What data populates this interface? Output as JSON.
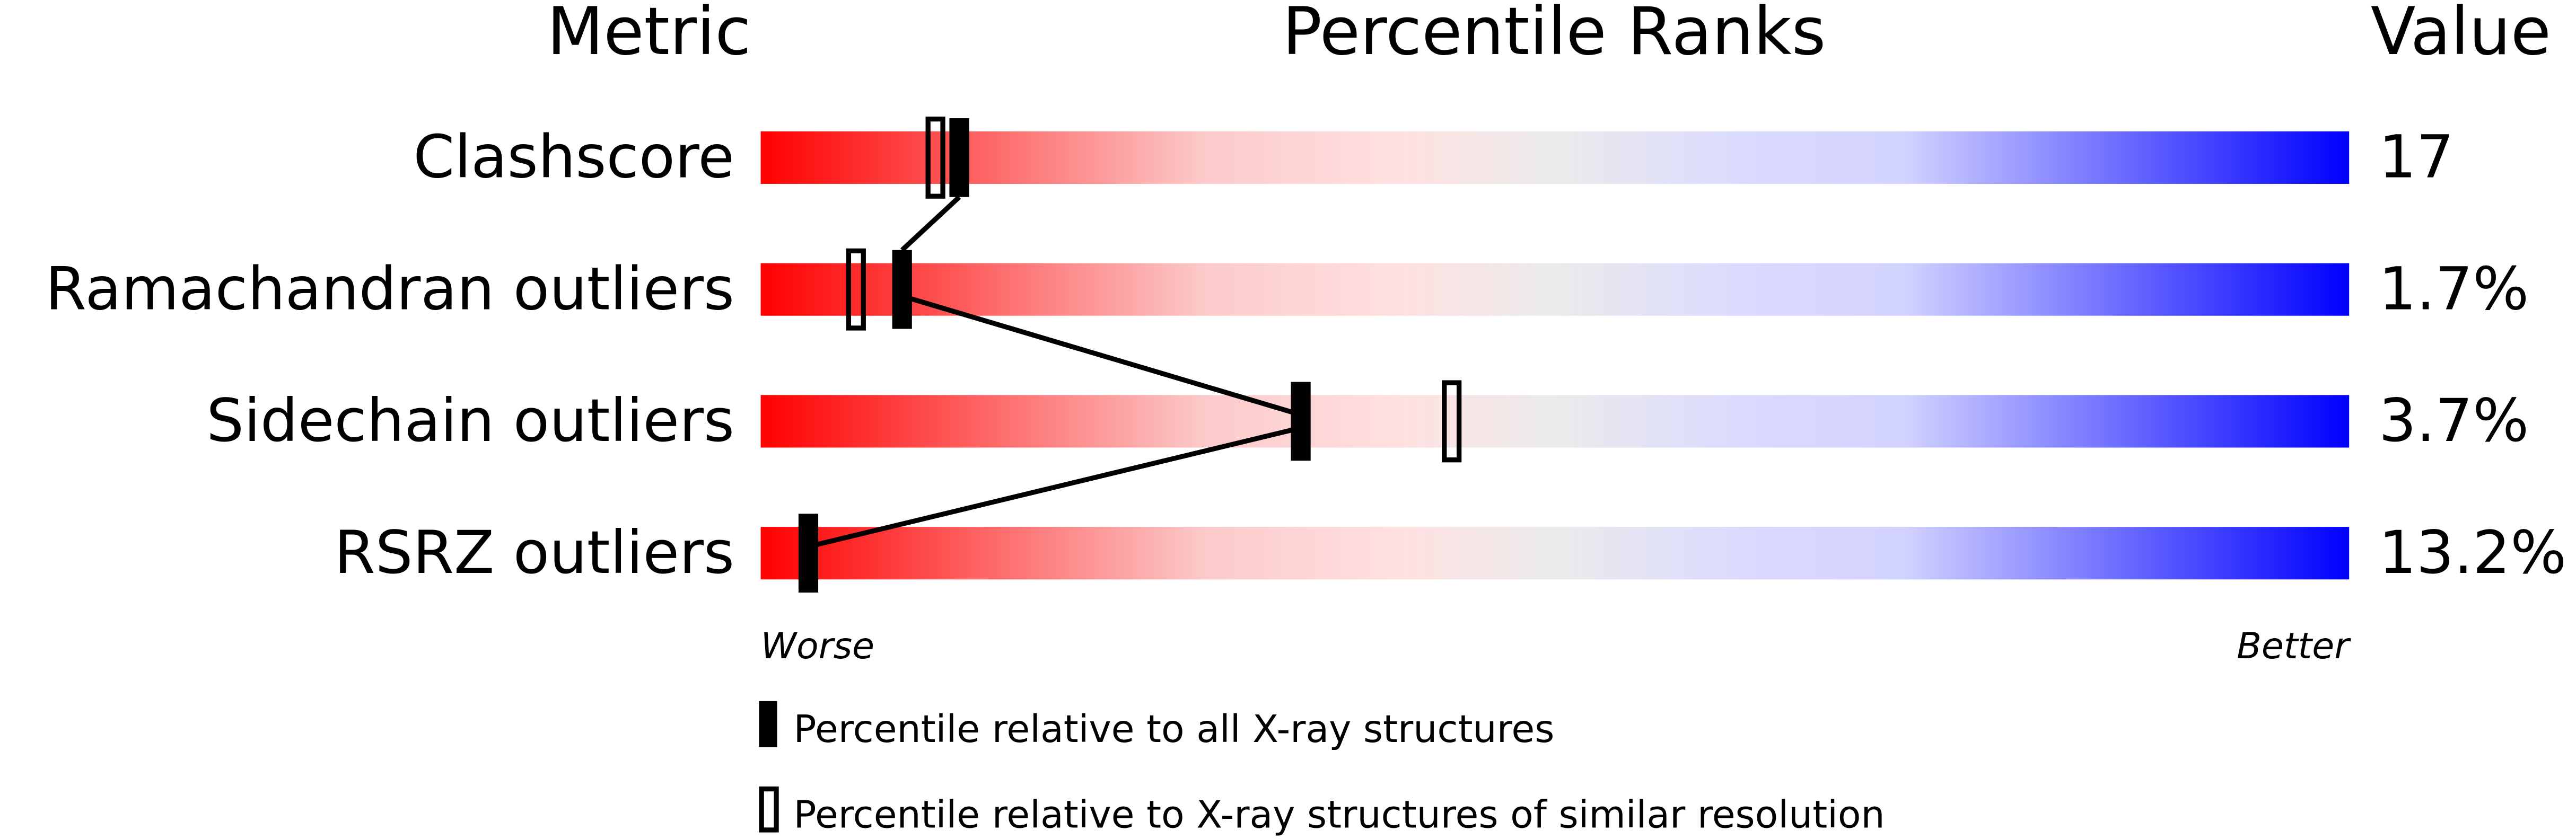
{
  "chart_data": {
    "type": "bar",
    "title": "Percentile Ranks",
    "column_headers": {
      "metric": "Metric",
      "ranks": "Percentile Ranks",
      "value": "Value"
    },
    "axis_labels": {
      "left": "Worse",
      "right": "Better"
    },
    "xlim": [
      0,
      100
    ],
    "grid": false,
    "gradient_colors": [
      "#ff0000",
      "#ffe0e0",
      "#ebebeb",
      "#d8d8ff",
      "#0000ff"
    ],
    "metrics": [
      {
        "name": "Clashscore",
        "value": "17",
        "percentile_all": 12.5,
        "percentile_similar": 11
      },
      {
        "name": "Ramachandran outliers",
        "value": "1.7%",
        "percentile_all": 8.9,
        "percentile_similar": 6
      },
      {
        "name": "Sidechain outliers",
        "value": "3.7%",
        "percentile_all": 34,
        "percentile_similar": 43.5
      },
      {
        "name": "RSRZ outliers",
        "value": "13.2%",
        "percentile_all": 3,
        "percentile_similar": null
      }
    ],
    "legend": {
      "all": "Percentile relative to all X-ray structures",
      "similar": "Percentile relative to X-ray structures of similar resolution"
    },
    "legend_placement": "bottom"
  }
}
